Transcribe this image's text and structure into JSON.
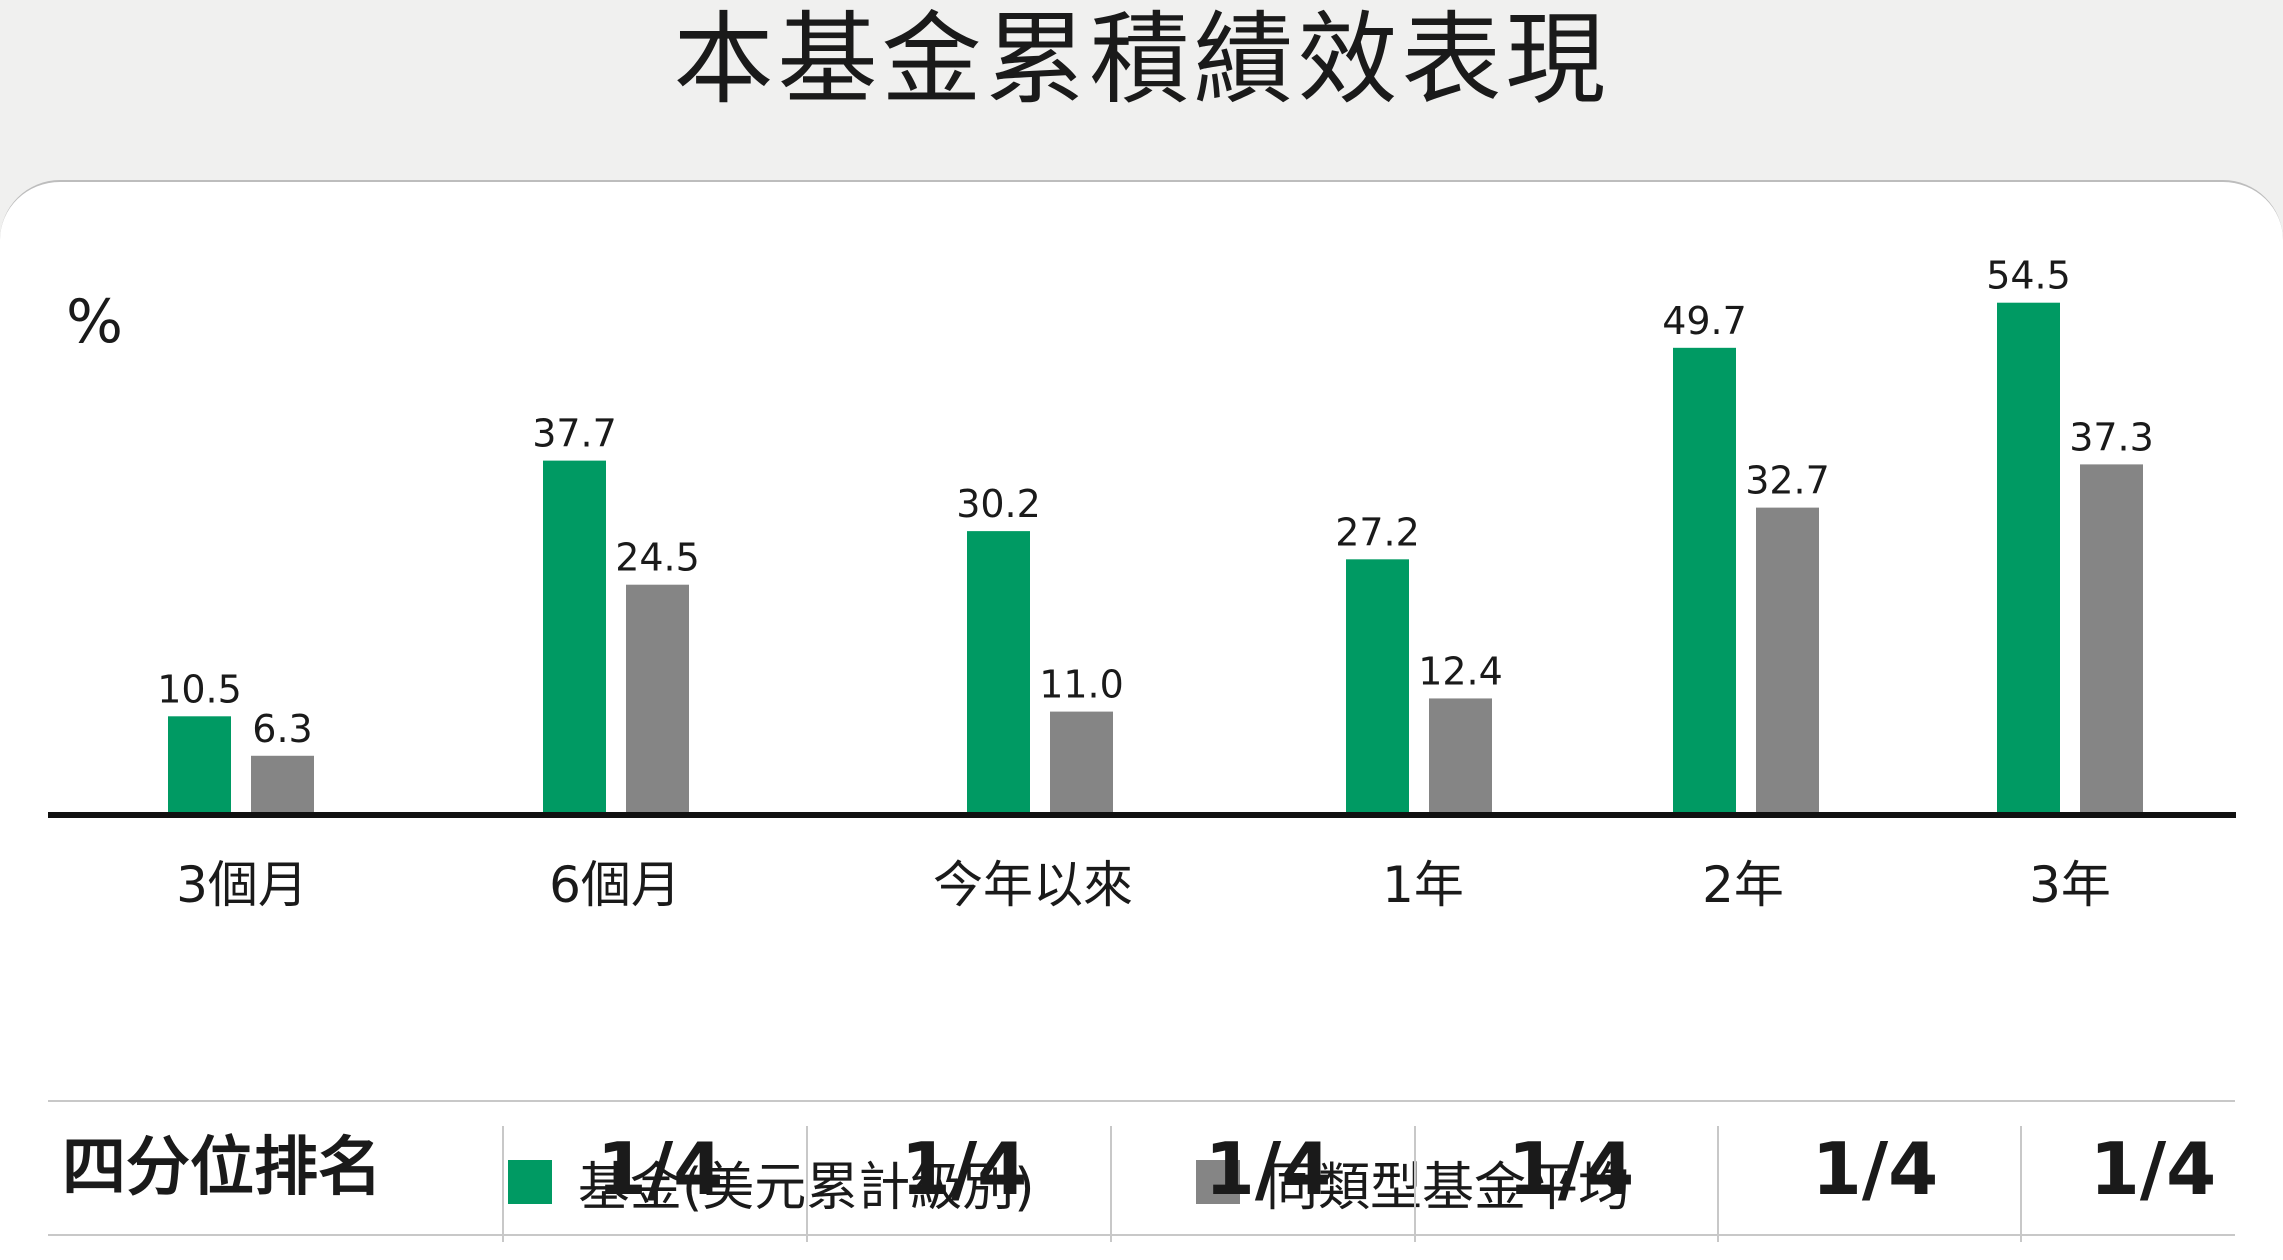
{
  "title": "本基金累積績效表現",
  "colors": {
    "fund": "#009a63",
    "peer": "#858585",
    "axis": "#111111"
  },
  "chart_data": {
    "type": "bar",
    "ylabel": "%",
    "categories": [
      "3個月",
      "6個月",
      "今年以來",
      "1年",
      "2年",
      "3年"
    ],
    "series": [
      {
        "name": "基金(美元累計級別)",
        "values": [
          10.5,
          37.7,
          30.2,
          27.2,
          49.7,
          54.5
        ],
        "labels": [
          "10.5",
          "37.7",
          "30.2",
          "27.2",
          "49.7",
          "54.5"
        ]
      },
      {
        "name": "同類型基金平均",
        "values": [
          6.3,
          24.5,
          11.0,
          12.4,
          32.7,
          37.3
        ],
        "labels": [
          "6.3",
          "24.5",
          "11.0",
          "12.4",
          "32.7",
          "37.3"
        ]
      }
    ],
    "ylim": [
      0,
      60
    ],
    "grid": false,
    "legend_position": "bottom-center"
  },
  "ranking": {
    "label": "四分位排名",
    "values": [
      "1/4",
      "1/4",
      "1/4",
      "1/4",
      "1/4",
      "1/4"
    ]
  }
}
